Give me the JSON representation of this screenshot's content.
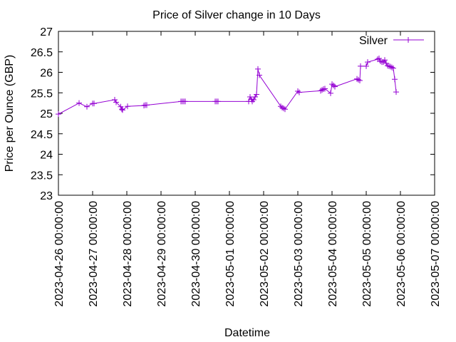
{
  "chart_data": {
    "type": "line",
    "title": "Price of Silver change in 10 Days",
    "xlabel": "Datetime",
    "ylabel": "Price per Ounce (GBP)",
    "xlim": [
      "2023-04-26 00:00:00",
      "2023-05-07 00:00:00"
    ],
    "ylim": [
      23,
      27
    ],
    "y_ticks": [
      23,
      23.5,
      24,
      24.5,
      25,
      25.5,
      26,
      26.5,
      27
    ],
    "x_ticks": [
      "2023-04-26 00:00:00",
      "2023-04-27 00:00:00",
      "2023-04-28 00:00:00",
      "2023-04-29 00:00:00",
      "2023-04-30 00:00:00",
      "2023-05-01 00:00:00",
      "2023-05-02 00:00:00",
      "2023-05-03 00:00:00",
      "2023-05-04 00:00:00",
      "2023-05-05 00:00:00",
      "2023-05-06 00:00:00",
      "2023-05-07 00:00:00"
    ],
    "grid": false,
    "legend": "top-right",
    "series": [
      {
        "name": "Silver",
        "color": "#9400d3",
        "marker": "plus",
        "points": [
          [
            "2023-04-26 00:00:00",
            24.98
          ],
          [
            "2023-04-26 14:30:00",
            25.25
          ],
          [
            "2023-04-26 20:00:00",
            25.16
          ],
          [
            "2023-04-27 00:00:00",
            25.24
          ],
          [
            "2023-04-27 01:00:00",
            25.24
          ],
          [
            "2023-04-27 15:30:00",
            25.33
          ],
          [
            "2023-04-27 16:30:00",
            25.27
          ],
          [
            "2023-04-27 19:40:00",
            25.16
          ],
          [
            "2023-04-27 20:30:00",
            25.1
          ],
          [
            "2023-04-27 21:00:00",
            25.08
          ],
          [
            "2023-04-28 00:30:00",
            25.17
          ],
          [
            "2023-04-28 12:00:00",
            25.19
          ],
          [
            "2023-04-28 13:00:00",
            25.2
          ],
          [
            "2023-04-28 14:00:00",
            25.2
          ],
          [
            "2023-04-29 14:00:00",
            25.29
          ],
          [
            "2023-04-29 15:00:00",
            25.29
          ],
          [
            "2023-04-29 16:00:00",
            25.29
          ],
          [
            "2023-04-29 17:00:00",
            25.29
          ],
          [
            "2023-04-30 14:00:00",
            25.29
          ],
          [
            "2023-04-30 15:00:00",
            25.29
          ],
          [
            "2023-04-30 16:00:00",
            25.29
          ],
          [
            "2023-05-01 13:30:00",
            25.29
          ],
          [
            "2023-05-01 14:30:00",
            25.4
          ],
          [
            "2023-05-01 15:30:00",
            25.34
          ],
          [
            "2023-05-01 16:00:00",
            25.29
          ],
          [
            "2023-05-01 17:00:00",
            25.33
          ],
          [
            "2023-05-01 18:00:00",
            25.4
          ],
          [
            "2023-05-01 19:00:00",
            25.46
          ],
          [
            "2023-05-01 20:00:00",
            26.08
          ],
          [
            "2023-05-01 21:00:00",
            25.93
          ],
          [
            "2023-05-02 12:00:00",
            25.17
          ],
          [
            "2023-05-02 13:00:00",
            25.14
          ],
          [
            "2023-05-02 14:00:00",
            25.12
          ],
          [
            "2023-05-02 15:00:00",
            25.1
          ],
          [
            "2023-05-03 00:00:00",
            25.54
          ],
          [
            "2023-05-03 01:00:00",
            25.51
          ],
          [
            "2023-05-03 16:00:00",
            25.55
          ],
          [
            "2023-05-03 17:00:00",
            25.57
          ],
          [
            "2023-05-03 18:00:00",
            25.59
          ],
          [
            "2023-05-03 19:00:00",
            25.6
          ],
          [
            "2023-05-03 23:00:00",
            25.49
          ],
          [
            "2023-05-04 00:00:00",
            25.71
          ],
          [
            "2023-05-04 01:00:00",
            25.68
          ],
          [
            "2023-05-04 02:00:00",
            25.65
          ],
          [
            "2023-05-04 17:30:00",
            25.84
          ],
          [
            "2023-05-04 18:30:00",
            25.82
          ],
          [
            "2023-05-04 19:30:00",
            25.8
          ],
          [
            "2023-05-04 20:00:00",
            26.15
          ],
          [
            "2023-05-05 00:00:00",
            26.15
          ],
          [
            "2023-05-05 01:00:00",
            26.25
          ],
          [
            "2023-05-05 08:00:00",
            26.32
          ],
          [
            "2023-05-05 09:00:00",
            26.34
          ],
          [
            "2023-05-05 10:00:00",
            26.27
          ],
          [
            "2023-05-05 11:00:00",
            26.25
          ],
          [
            "2023-05-05 12:00:00",
            26.25
          ],
          [
            "2023-05-05 13:00:00",
            26.3
          ],
          [
            "2023-05-05 14:00:00",
            26.22
          ],
          [
            "2023-05-05 15:00:00",
            26.16
          ],
          [
            "2023-05-05 16:00:00",
            26.15
          ],
          [
            "2023-05-05 17:00:00",
            26.14
          ],
          [
            "2023-05-05 18:00:00",
            26.12
          ],
          [
            "2023-05-05 19:00:00",
            26.1
          ],
          [
            "2023-05-05 20:00:00",
            25.83
          ],
          [
            "2023-05-05 21:00:00",
            25.52
          ]
        ]
      }
    ]
  }
}
